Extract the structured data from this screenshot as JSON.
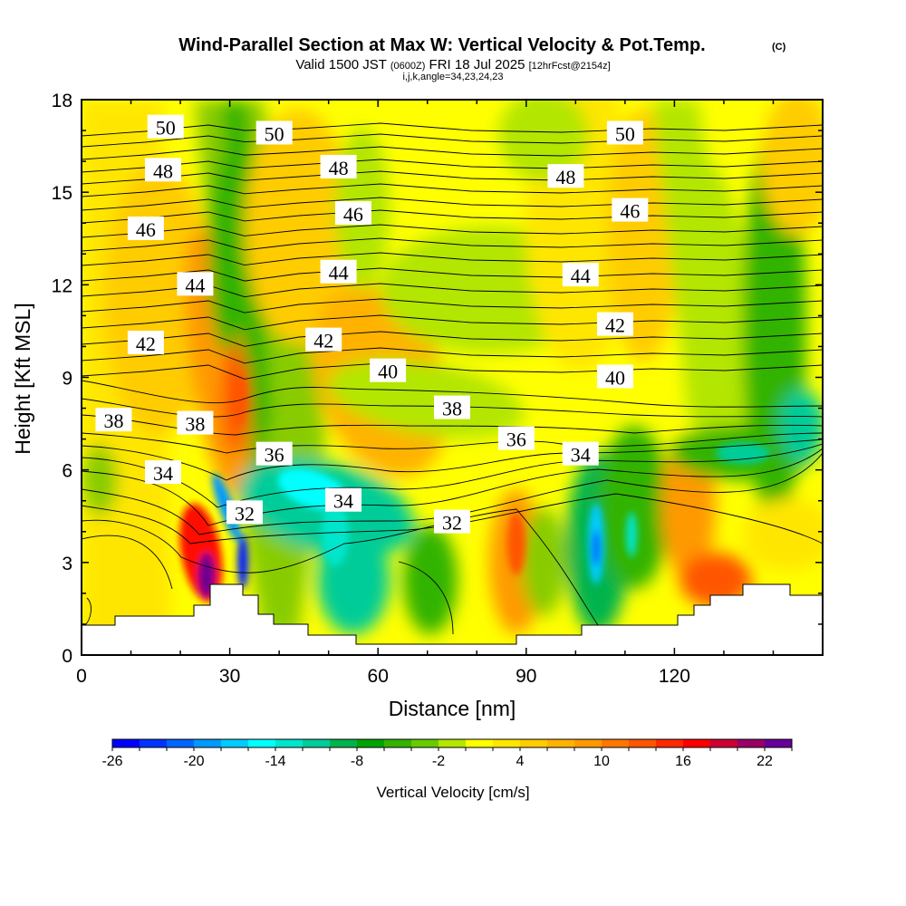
{
  "header": {
    "title": "Wind-Parallel Section at Max W: Vertical Velocity & Pot.Temp.",
    "copyright": "(C)",
    "valid_prefix": "Valid 1500 JST",
    "valid_utc": "(0600Z)",
    "valid_date": "FRI 18 Jul 2025",
    "forecast": "[12hrFcst@2154z]",
    "params": "i,j,k,angle=34,23,24,23"
  },
  "chart_data": {
    "type": "heatmap",
    "xlabel": "Distance [nm]",
    "ylabel": "Height [Kft MSL]",
    "xlim": [
      0,
      150
    ],
    "ylim": [
      0,
      18
    ],
    "x_ticks": [
      0,
      30,
      60,
      90,
      120
    ],
    "y_ticks": [
      0,
      3,
      6,
      9,
      12,
      15,
      18
    ],
    "colorbar": {
      "title": "Vertical Velocity [cm/s]",
      "min": -26,
      "max": 24,
      "step": 2,
      "tick_labels": [
        "-26",
        "-20",
        "-14",
        "-8",
        "-2",
        "4",
        "10",
        "16",
        "22"
      ],
      "colors": [
        "#0000ff",
        "#0033ff",
        "#0066ff",
        "#0099ff",
        "#00ccff",
        "#00ffff",
        "#00e6cc",
        "#00cc99",
        "#00b34d",
        "#00a300",
        "#33b300",
        "#66cc00",
        "#b3e600",
        "#ffff00",
        "#ffe600",
        "#ffcc00",
        "#ffb300",
        "#ff9900",
        "#ff7700",
        "#ff5500",
        "#ff2a00",
        "#ff0000",
        "#cc0033",
        "#990066",
        "#660099"
      ]
    },
    "theta_contours": {
      "levels": [
        32,
        34,
        36,
        38,
        40,
        42,
        44,
        46,
        48,
        50
      ],
      "labels": [
        {
          "text": "50",
          "x": 17,
          "y": 17.1
        },
        {
          "text": "50",
          "x": 39,
          "y": 16.9
        },
        {
          "text": "50",
          "x": 110,
          "y": 16.9
        },
        {
          "text": "48",
          "x": 16.5,
          "y": 15.7
        },
        {
          "text": "48",
          "x": 52,
          "y": 15.8
        },
        {
          "text": "48",
          "x": 98,
          "y": 15.5
        },
        {
          "text": "46",
          "x": 13,
          "y": 13.8
        },
        {
          "text": "46",
          "x": 55,
          "y": 14.3
        },
        {
          "text": "46",
          "x": 111,
          "y": 14.4
        },
        {
          "text": "44",
          "x": 23,
          "y": 12.0
        },
        {
          "text": "44",
          "x": 52,
          "y": 12.4
        },
        {
          "text": "44",
          "x": 101,
          "y": 12.3
        },
        {
          "text": "42",
          "x": 13,
          "y": 10.1
        },
        {
          "text": "42",
          "x": 49,
          "y": 10.2
        },
        {
          "text": "42",
          "x": 108,
          "y": 10.7
        },
        {
          "text": "40",
          "x": 62,
          "y": 9.2
        },
        {
          "text": "40",
          "x": 108,
          "y": 9.0
        },
        {
          "text": "38",
          "x": 6.5,
          "y": 7.6
        },
        {
          "text": "38",
          "x": 23,
          "y": 7.5
        },
        {
          "text": "38",
          "x": 75,
          "y": 8.0
        },
        {
          "text": "36",
          "x": 39,
          "y": 6.5
        },
        {
          "text": "36",
          "x": 88,
          "y": 7.0
        },
        {
          "text": "34",
          "x": 16.5,
          "y": 5.9
        },
        {
          "text": "34",
          "x": 101,
          "y": 6.5
        },
        {
          "text": "34",
          "x": 53,
          "y": 5.0
        },
        {
          "text": "32",
          "x": 33,
          "y": 4.6
        },
        {
          "text": "32",
          "x": 75,
          "y": 4.3
        }
      ]
    }
  }
}
